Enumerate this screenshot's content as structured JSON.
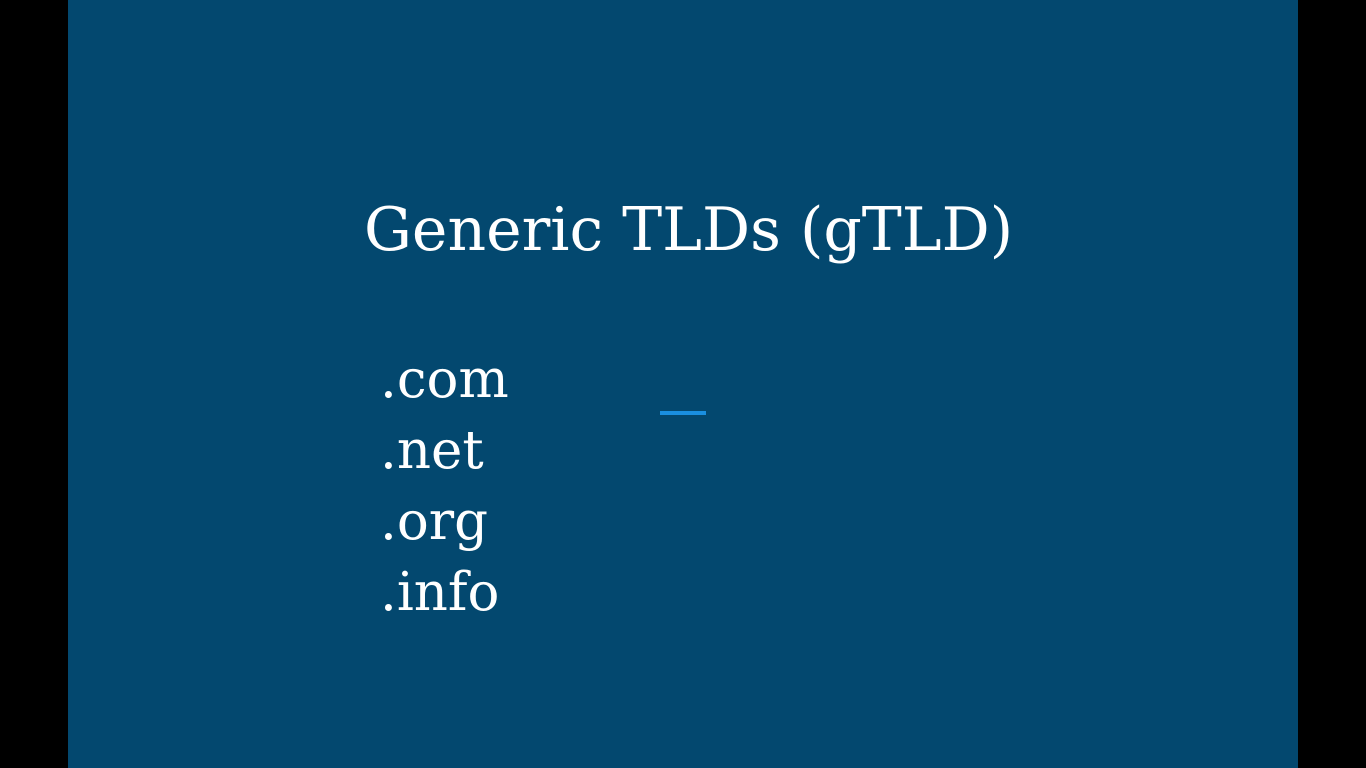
{
  "slide": {
    "title": "Generic TLDs (gTLD)",
    "items": [
      ".com",
      ".net",
      ".org",
      ".info"
    ]
  },
  "colors": {
    "background": "#03486f",
    "text": "#ffffff",
    "accent": "#1a8fe0",
    "letterbox": "#000000"
  }
}
